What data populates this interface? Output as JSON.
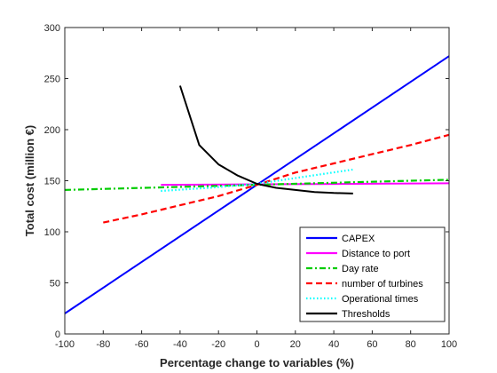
{
  "chart_data": {
    "type": "line",
    "title": "",
    "xlabel": "Percentage change to variables (%)",
    "ylabel": "Total cost (million €)",
    "xlim": [
      -100,
      100
    ],
    "ylim": [
      0,
      300
    ],
    "xticks": [
      -100,
      -80,
      -60,
      -40,
      -20,
      0,
      20,
      40,
      60,
      80,
      100
    ],
    "yticks": [
      0,
      50,
      100,
      150,
      200,
      250,
      300
    ],
    "grid": false,
    "legend_position": "bottom-right",
    "series": [
      {
        "name": "CAPEX",
        "color": "#0000ff",
        "style": "solid",
        "x": [
          -100,
          0,
          100
        ],
        "y": [
          20,
          146,
          272
        ]
      },
      {
        "name": "Distance to port",
        "color": "#ff00ff",
        "style": "solid",
        "x": [
          -50,
          0,
          50,
          100
        ],
        "y": [
          146,
          146.5,
          147,
          147.5
        ]
      },
      {
        "name": "Day rate",
        "color": "#00cc00",
        "style": "dashdot",
        "x": [
          -100,
          -50,
          0,
          50,
          100
        ],
        "y": [
          141,
          143.5,
          146,
          148.5,
          151
        ]
      },
      {
        "name": "number of turbines",
        "color": "#ff0000",
        "style": "dashed",
        "x": [
          -80,
          -60,
          -40,
          -20,
          0,
          20,
          40,
          60,
          80,
          100
        ],
        "y": [
          109,
          117,
          126,
          135,
          146,
          158,
          167,
          176,
          185,
          195
        ]
      },
      {
        "name": "Operational times",
        "color": "#00ffff",
        "style": "dotted",
        "x": [
          -50,
          -25,
          0,
          25,
          50
        ],
        "y": [
          140,
          143,
          147,
          154,
          161
        ]
      },
      {
        "name": "Thresholds",
        "color": "#000000",
        "style": "solid",
        "x": [
          -40,
          -30,
          -20,
          -10,
          0,
          10,
          20,
          30,
          40,
          50
        ],
        "y": [
          243,
          185,
          166,
          155,
          147,
          143,
          141,
          139,
          138,
          137.5
        ]
      }
    ]
  }
}
